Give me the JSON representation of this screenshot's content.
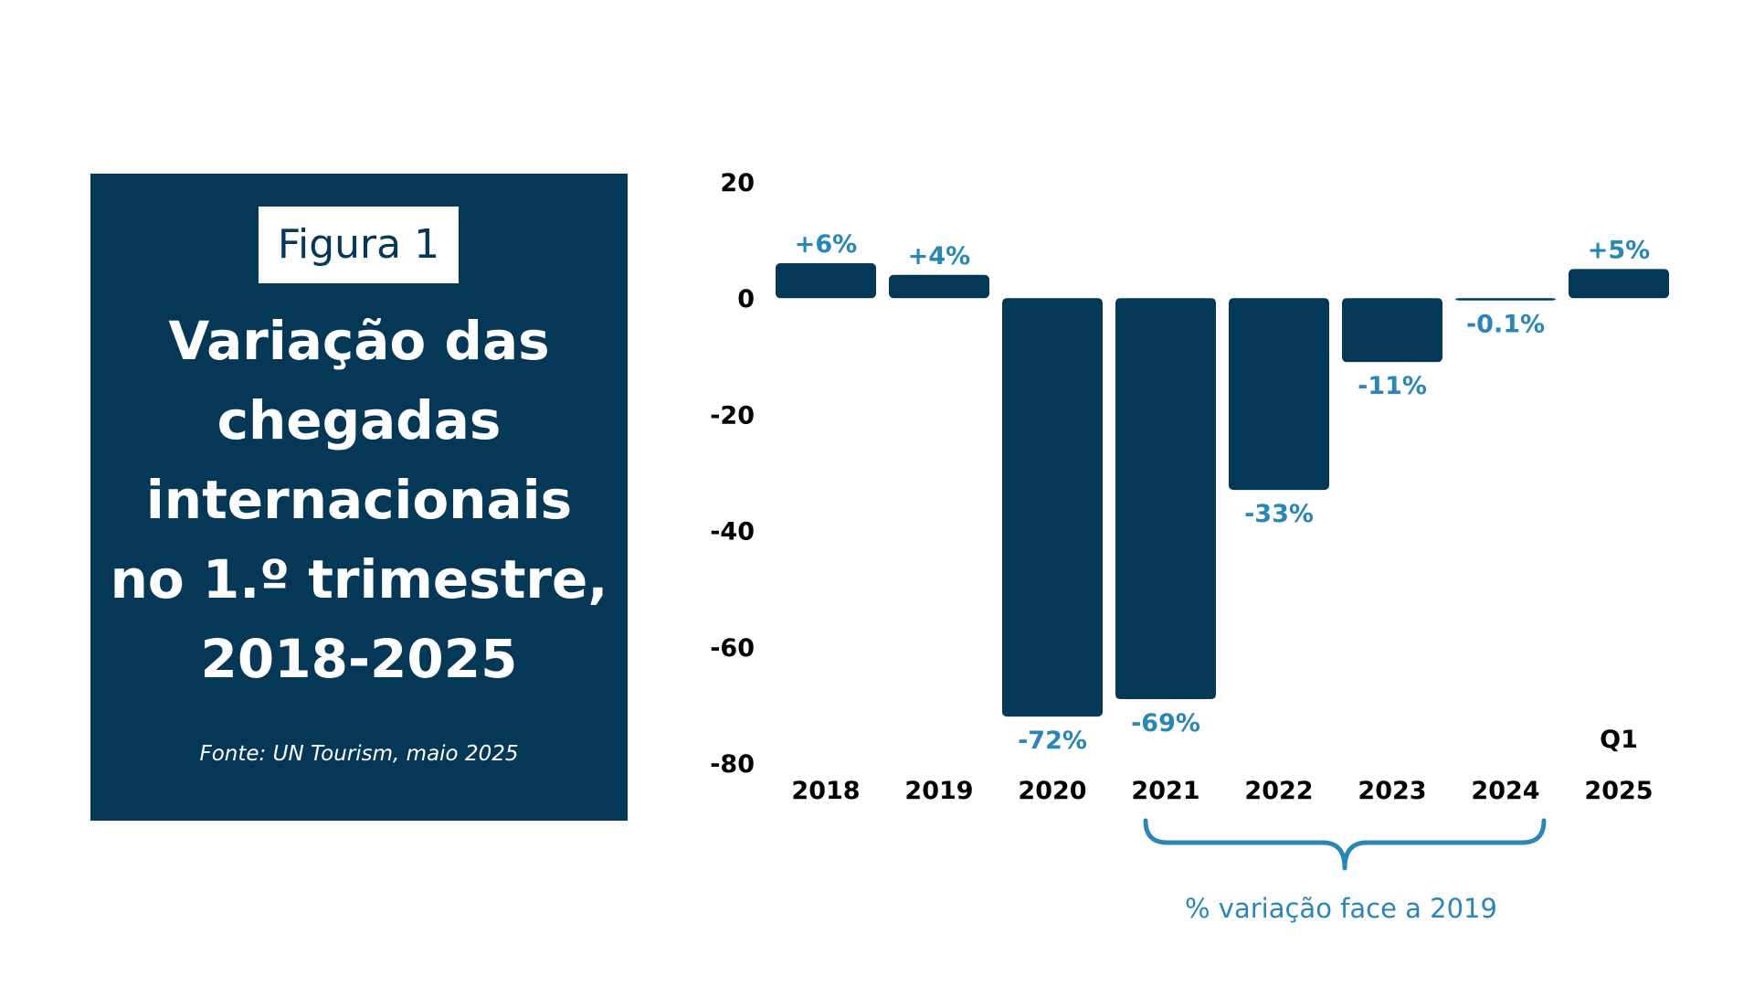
{
  "panel": {
    "figure_label": "Figura 1",
    "title_lines": [
      "Variação das",
      "chegadas",
      "internacionais",
      "no 1.º trimestre,",
      "2018-2025"
    ],
    "source": "Fonte: UN Tourism, maio 2025"
  },
  "chart_data": {
    "type": "bar",
    "title": "Variação das chegadas internacionais no 1.º trimestre, 2018-2025",
    "categories": [
      "2018",
      "2019",
      "2020",
      "2021",
      "2022",
      "2023",
      "2024",
      "2025"
    ],
    "category_prefix": [
      "",
      "",
      "",
      "",
      "",
      "",
      "",
      "Q1"
    ],
    "values": [
      6,
      4,
      -72,
      -69,
      -33,
      -11,
      -0.1,
      5
    ],
    "value_labels": [
      "+6%",
      "+4%",
      "-72%",
      "-69%",
      "-33%",
      "-11%",
      "-0.1%",
      "+5%"
    ],
    "ylim": [
      -80,
      20
    ],
    "yticks": [
      "20",
      "0",
      "-20",
      "-40",
      "-60",
      "-80"
    ],
    "ytick_values": [
      20,
      0,
      -20,
      -40,
      -60,
      -80
    ],
    "grid": false,
    "annotation": {
      "text": "% variação face a 2019",
      "span": [
        "2021",
        "2024"
      ]
    },
    "colors": {
      "bar": "#053856",
      "value_label": "#2a86b5",
      "axis_text": "#000000",
      "annotation": "#2a86b5"
    }
  }
}
